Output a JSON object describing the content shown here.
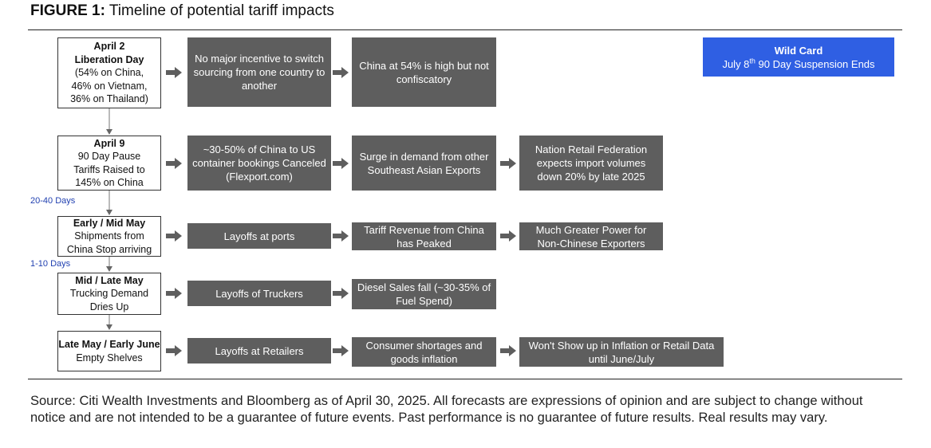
{
  "figure": {
    "label": "FIGURE 1:",
    "title": "Timeline of potential tariff impacts"
  },
  "wild_card": {
    "title": "Wild Card",
    "line_pre": "July 8",
    "line_sup": "th",
    "line_post": " 90 Day Suspension Ends"
  },
  "intervals": {
    "first": "20-40 Days",
    "second": "1-10 Days"
  },
  "rows": [
    {
      "event_head": "April 2",
      "event_lines": [
        "Liberation Day",
        "(54% on China,",
        "46% on Vietnam,",
        "36% on Thailand)"
      ],
      "impacts": [
        "No major incentive to switch sourcing from one country to another",
        "China at 54% is high but not confiscatory"
      ]
    },
    {
      "event_head": "April 9",
      "event_lines": [
        "90 Day Pause",
        "Tariffs Raised to",
        "145% on China"
      ],
      "impacts": [
        "~30-50% of China to US container bookings Canceled (Flexport.com)",
        "Surge in demand from other Southeast Asian Exports",
        "Nation Retail Federation expects import volumes down 20% by late 2025"
      ]
    },
    {
      "event_head": "Early / Mid May",
      "event_lines": [
        "Shipments from",
        "China Stop arriving"
      ],
      "impacts": [
        "Layoffs at ports",
        "Tariff Revenue from China has Peaked",
        "Much Greater Power for Non-Chinese Exporters"
      ]
    },
    {
      "event_head": "Mid / Late May",
      "event_lines": [
        "Trucking Demand",
        "Dries Up"
      ],
      "impacts": [
        "Layoffs of Truckers",
        "Diesel Sales fall (~30-35% of Fuel Spend)"
      ]
    },
    {
      "event_head": "Late May / Early June",
      "event_lines": [
        "Empty Shelves"
      ],
      "impacts": [
        "Layoffs at Retailers",
        "Consumer shortages and goods inflation",
        "Won't Show up in Inflation or Retail Data until June/July"
      ]
    }
  ],
  "source": "Source: Citi Wealth Investments and Bloomberg as of April 30, 2025. All forecasts are expressions of opinion and are subject to change without notice and are not intended to be a guarantee of future events. Past performance is no guarantee of future results. Real results may vary.",
  "colors": {
    "impact_box": "#5e5e5e",
    "wild_card": "#2f5fe3",
    "interval_text": "#1f3fb0"
  }
}
